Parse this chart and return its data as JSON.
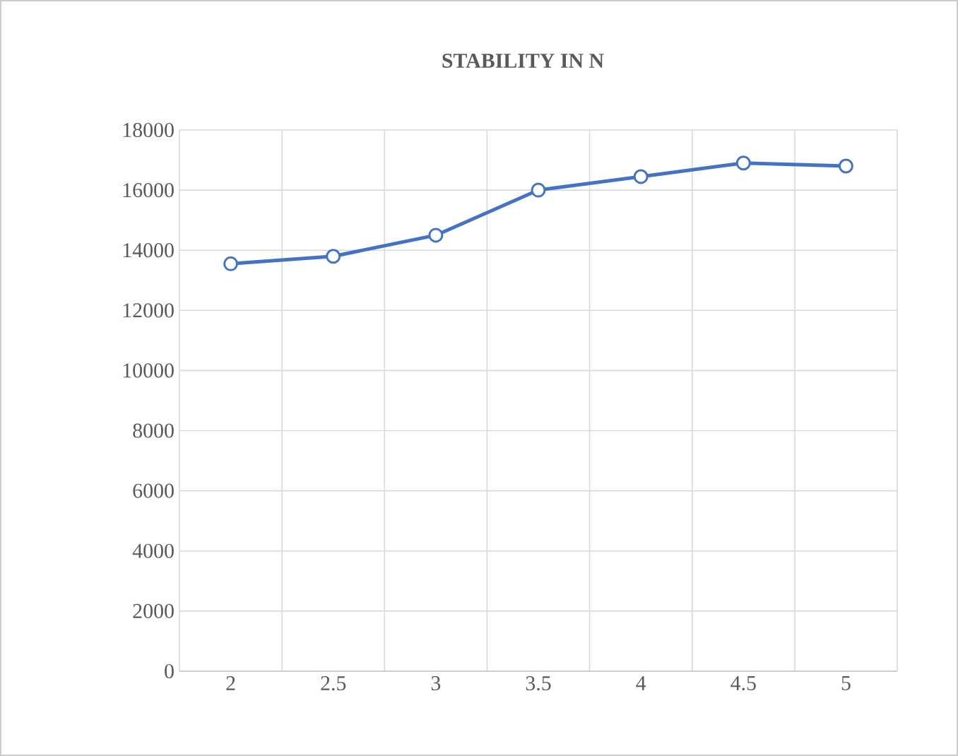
{
  "chart_data": {
    "type": "line",
    "title": "STABILITY IN N",
    "categories": [
      "2",
      "2.5",
      "3",
      "3.5",
      "4",
      "4.5",
      "5"
    ],
    "series": [
      {
        "color": "#4472c4",
        "values": [
          13550,
          13800,
          14500,
          16000,
          16450,
          16900,
          16800
        ]
      }
    ],
    "ylim": [
      0,
      18000
    ],
    "yticks": [
      0,
      2000,
      4000,
      6000,
      8000,
      10000,
      12000,
      14000,
      16000,
      18000
    ],
    "grid": true,
    "marker": "circle",
    "line_style": "solid"
  }
}
